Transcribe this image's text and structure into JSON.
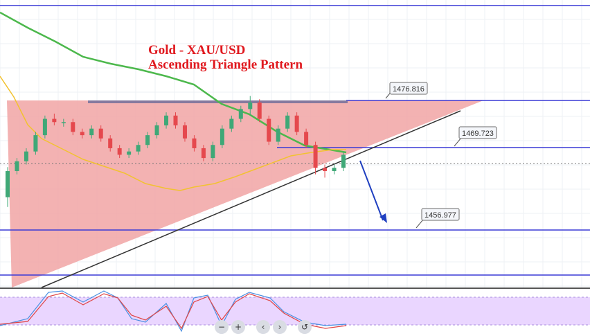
{
  "chart_data": {
    "type": "candlestick",
    "title": "Gold - XAU/USD",
    "subtitle": "Ascending Triangle Pattern",
    "price_levels": [
      "1476.816",
      "1469.723",
      "1456.977"
    ],
    "candles": [
      [
        1462.0,
        1466.0,
        1460.5,
        1466.6
      ],
      [
        1466.0,
        1467.5,
        1465.5,
        1468.0
      ],
      [
        1467.5,
        1469.0,
        1467.0,
        1469.5
      ],
      [
        1469.0,
        1471.5,
        1468.5,
        1472.0
      ],
      [
        1471.5,
        1474.0,
        1471.0,
        1474.5
      ],
      [
        1474.0,
        1473.5,
        1473.0,
        1474.8
      ],
      [
        1473.5,
        1473.5,
        1472.8,
        1474.0
      ],
      [
        1473.5,
        1472.0,
        1471.5,
        1474.0
      ],
      [
        1472.0,
        1471.5,
        1471.0,
        1472.5
      ],
      [
        1471.5,
        1472.5,
        1471.0,
        1473.0
      ],
      [
        1472.5,
        1471.0,
        1470.5,
        1473.0
      ],
      [
        1471.0,
        1469.5,
        1469.0,
        1471.5
      ],
      [
        1469.5,
        1468.5,
        1468.0,
        1470.0
      ],
      [
        1468.5,
        1469.0,
        1468.0,
        1469.5
      ],
      [
        1469.0,
        1470.0,
        1468.5,
        1470.5
      ],
      [
        1470.0,
        1471.5,
        1469.5,
        1472.0
      ],
      [
        1471.5,
        1473.0,
        1471.0,
        1473.5
      ],
      [
        1473.0,
        1474.5,
        1472.5,
        1475.0
      ],
      [
        1474.5,
        1473.0,
        1472.5,
        1475.0
      ],
      [
        1473.0,
        1471.0,
        1470.5,
        1473.5
      ],
      [
        1471.0,
        1469.5,
        1469.0,
        1471.5
      ],
      [
        1469.5,
        1468.0,
        1467.5,
        1470.0
      ],
      [
        1468.0,
        1470.0,
        1467.5,
        1470.5
      ],
      [
        1470.0,
        1472.5,
        1469.5,
        1473.0
      ],
      [
        1472.5,
        1474.0,
        1472.0,
        1474.5
      ],
      [
        1474.0,
        1475.5,
        1473.5,
        1476.0
      ],
      [
        1475.5,
        1476.5,
        1474.5,
        1477.5
      ],
      [
        1476.5,
        1474.0,
        1473.5,
        1477.0
      ],
      [
        1474.0,
        1470.5,
        1470.0,
        1474.5
      ],
      [
        1470.5,
        1472.5,
        1470.0,
        1473.0
      ],
      [
        1472.5,
        1474.5,
        1472.0,
        1475.0
      ],
      [
        1474.5,
        1472.0,
        1471.5,
        1475.0
      ],
      [
        1472.0,
        1470.0,
        1469.5,
        1472.5
      ],
      [
        1470.0,
        1466.5,
        1465.5,
        1470.5
      ],
      [
        1466.5,
        1466.0,
        1465.0,
        1467.0
      ],
      [
        1466.0,
        1466.5,
        1465.5,
        1467.0
      ],
      [
        1466.5,
        1468.5,
        1466.0,
        1469.0
      ]
    ]
  }
}
